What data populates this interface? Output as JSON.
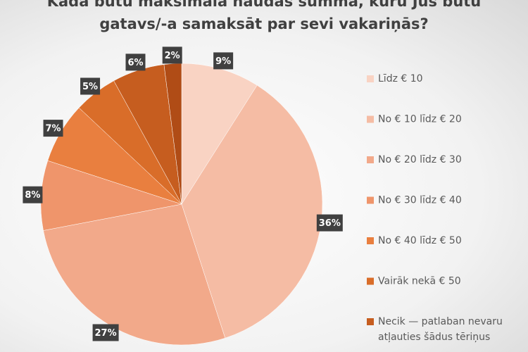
{
  "chart_data": {
    "type": "pie",
    "title": "Kāda būtu maksimālā naudas summa, kuru Jūs būtu gatavs/-a samaksāt par sevi vakariņās?",
    "categories": [
      "Līdz € 10",
      "No € 10 līdz € 20",
      "No € 20 līdz € 30",
      "No € 30 līdz € 40",
      "No € 40 līdz € 50",
      "Vairāk nekā € 50",
      "Necik — patlaban nevaru atļauties šādus tēriņus",
      null
    ],
    "values": [
      9,
      36,
      27,
      8,
      7,
      5,
      6,
      2
    ],
    "value_labels": [
      "9%",
      "36%",
      "27%",
      "8%",
      "7%",
      "5%",
      "6%",
      "2%"
    ],
    "colors": [
      "#f9d3c3",
      "#f5bca4",
      "#f2a98a",
      "#ef956b",
      "#e97f3f",
      "#d96d29",
      "#c65d1f",
      "#b04c16"
    ],
    "legend": "right"
  }
}
